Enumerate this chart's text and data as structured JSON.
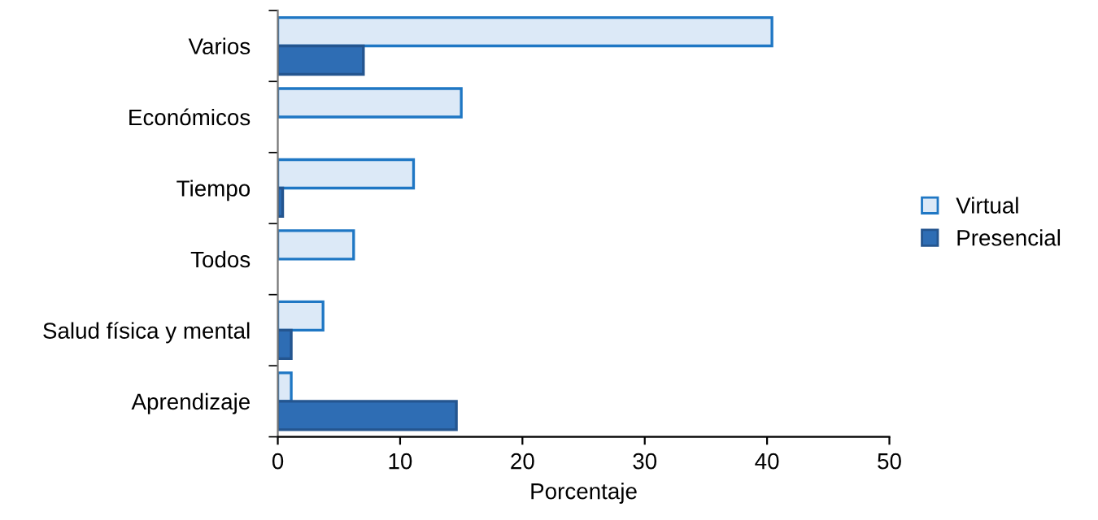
{
  "chart_data": {
    "type": "bar",
    "orientation": "horizontal",
    "xlabel": "Porcentaje",
    "categories": [
      "Varios",
      "Económicos",
      "Tiempo",
      "Todos",
      "Salud física y mental",
      "Aprendizaje"
    ],
    "series": [
      {
        "name": "Virtual",
        "color": "#dce9f7",
        "values": [
          40.4,
          15.0,
          11.1,
          6.2,
          3.7,
          1.1
        ]
      },
      {
        "name": "Presencial",
        "color": "#2e6db4",
        "values": [
          7.0,
          null,
          0.4,
          null,
          1.1,
          14.6
        ]
      }
    ],
    "xlim": [
      0,
      50
    ],
    "xticks": [
      0,
      10,
      20,
      30,
      40,
      50
    ],
    "grid": false,
    "legend": "right"
  }
}
